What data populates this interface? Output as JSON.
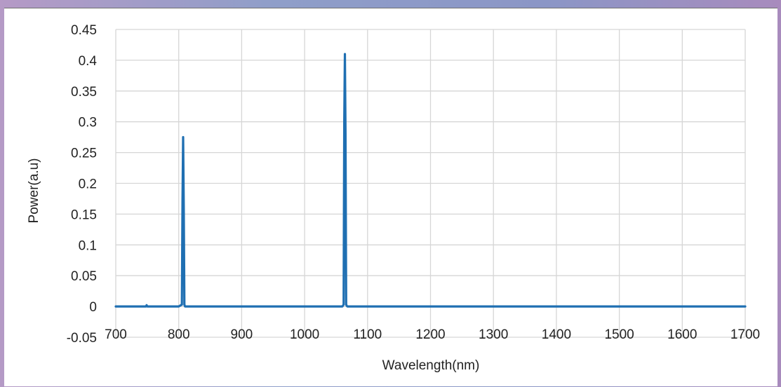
{
  "chart_data": {
    "type": "line",
    "title": "",
    "xlabel": "Wavelength(nm)",
    "ylabel": "Power(a.u)",
    "xlim": [
      700,
      1700
    ],
    "ylim": [
      -0.05,
      0.45
    ],
    "x_ticks": [
      700,
      800,
      900,
      1000,
      1100,
      1200,
      1300,
      1400,
      1500,
      1600,
      1700
    ],
    "y_ticks": [
      -0.05,
      0,
      0.05,
      0.1,
      0.15,
      0.2,
      0.25,
      0.3,
      0.35,
      0.4,
      0.45
    ],
    "x_tick_labels": [
      "700",
      "800",
      "900",
      "1000",
      "1100",
      "1200",
      "1300",
      "1400",
      "1500",
      "1600",
      "1700"
    ],
    "y_tick_labels": [
      "-0.05",
      "0",
      "0.05",
      "0.1",
      "0.15",
      "0.2",
      "0.25",
      "0.3",
      "0.35",
      "0.4",
      "0.45"
    ],
    "grid": true,
    "legend": "none",
    "series": [
      {
        "color": "#1f6fb2",
        "x": [
          700,
          748,
          749,
          750,
          800,
          805,
          806,
          807,
          808,
          809,
          810,
          850,
          900,
          1000,
          1060,
          1062,
          1063,
          1064,
          1065,
          1066,
          1067,
          1068,
          1100,
          1200,
          1300,
          1400,
          1500,
          1600,
          1700
        ],
        "y": [
          0,
          0,
          0.002,
          0,
          0,
          0.003,
          0.17,
          0.275,
          0.16,
          0.003,
          0,
          0,
          0,
          0,
          0,
          0.003,
          0.3,
          0.41,
          0.28,
          0.003,
          0.001,
          0,
          0,
          0,
          0,
          0,
          0,
          0,
          0
        ]
      }
    ]
  }
}
